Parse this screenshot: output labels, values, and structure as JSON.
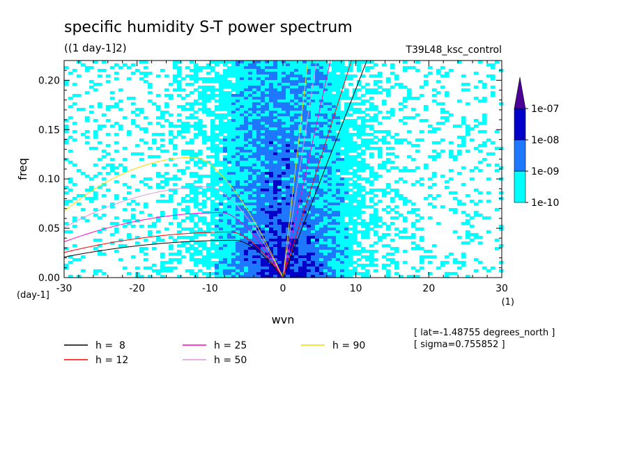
{
  "chart_data": {
    "type": "heatmap",
    "title": "specific humidity S-T power spectrum",
    "units": "((1 day-1]2)",
    "run_label": "T39L48_ksc_control",
    "xlabel": "wvn",
    "ylabel": "freq",
    "x_unit_label": "(1)",
    "y_unit_label": "(day-1]",
    "xlim": [
      -30,
      30
    ],
    "ylim": [
      0,
      0.22
    ],
    "x_ticks": [
      "-30",
      "-20",
      "-10",
      "0",
      "10",
      "20",
      "30"
    ],
    "x_tick_values": [
      -30,
      -20,
      -10,
      0,
      10,
      20,
      30
    ],
    "y_ticks": [
      "0.00",
      "0.05",
      "0.10",
      "0.15",
      "0.20"
    ],
    "y_tick_values": [
      0,
      0.05,
      0.1,
      0.15,
      0.2
    ],
    "colorbar": {
      "levels": [
        "1e-10",
        "1e-09",
        "1e-08",
        "1e-07"
      ],
      "colors": [
        "#00ffff",
        "#1e78ff",
        "#0000c8",
        "#4b0096"
      ]
    },
    "dispersion_curves": [
      {
        "name": "h =  8",
        "h": 8,
        "color": "#000000"
      },
      {
        "name": "h = 12",
        "h": 12,
        "color": "#ff0000"
      },
      {
        "name": "h = 25",
        "h": 25,
        "color": "#ff00c8"
      },
      {
        "name": "h = 50",
        "h": 50,
        "color": "#dc96dc"
      },
      {
        "name": "h = 90",
        "h": 90,
        "color": "#f0dc00"
      }
    ],
    "info": [
      "[ lat=-1.48755 degrees_north ]",
      "[ sigma=0.755852 ]"
    ]
  }
}
